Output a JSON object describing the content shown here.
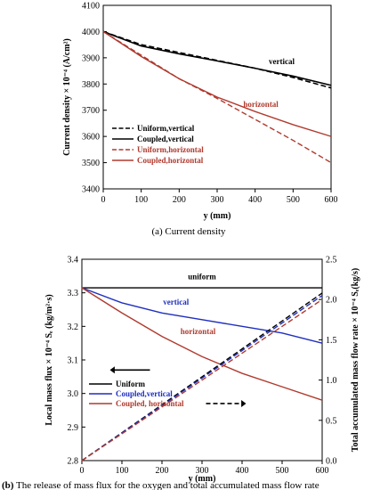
{
  "colors": {
    "black": "#000000",
    "red": "#b03a2e",
    "blue": "#1f2fbf"
  },
  "chart_data": [
    {
      "type": "line",
      "caption_prefix": "(a)",
      "caption_text": " Current density",
      "xlabel": "y (mm)",
      "ylabel": "Current density × 10⁻⁴ (A/cm²)",
      "xlim": [
        0,
        600
      ],
      "ylim": [
        3400,
        4100
      ],
      "xticks": [
        "0",
        "100",
        "200",
        "300",
        "400",
        "500",
        "600"
      ],
      "yticks": [
        "3400",
        "3500",
        "3600",
        "3700",
        "3800",
        "3900",
        "4000",
        "4100"
      ],
      "annotations": [
        {
          "text": "vertical",
          "x": 470,
          "y": 3876,
          "color": "black"
        },
        {
          "text": "horizontal",
          "x": 415,
          "y": 3712,
          "color": "red"
        }
      ],
      "legend": [
        {
          "text": "Uniform,vertical",
          "color": "black",
          "dash": true
        },
        {
          "text": "Coupled,vertical",
          "color": "black",
          "dash": false
        },
        {
          "text": "Uniform,horizontal",
          "color": "red",
          "dash": true
        },
        {
          "text": "Coupled,horizontal",
          "color": "red",
          "dash": false
        }
      ],
      "series": [
        {
          "name": "Uniform,vertical",
          "color": "black",
          "dash": true,
          "x": [
            0,
            100,
            200,
            300,
            400,
            500,
            600
          ],
          "values": [
            4000,
            3950,
            3920,
            3890,
            3860,
            3825,
            3785
          ]
        },
        {
          "name": "Coupled,vertical",
          "color": "black",
          "dash": false,
          "x": [
            0,
            100,
            200,
            300,
            400,
            500,
            600
          ],
          "values": [
            4000,
            3945,
            3915,
            3888,
            3860,
            3830,
            3795
          ]
        },
        {
          "name": "Uniform,horizontal",
          "color": "red",
          "dash": true,
          "x": [
            0,
            100,
            200,
            300,
            400,
            500,
            600
          ],
          "values": [
            4000,
            3910,
            3820,
            3745,
            3665,
            3585,
            3500
          ]
        },
        {
          "name": "Coupled,horizontal",
          "color": "red",
          "dash": false,
          "x": [
            0,
            100,
            200,
            300,
            400,
            500,
            600
          ],
          "values": [
            4000,
            3905,
            3820,
            3750,
            3695,
            3645,
            3600
          ]
        }
      ]
    },
    {
      "type": "line",
      "caption_prefix": "(b)",
      "caption_text": " The release of mass flux for the oxygen and total accumulated mass flow rate",
      "xlabel": "y (mm)",
      "ylabel": "Local mass flux × 10⁻⁴ Sₑ (kg/m²·s)",
      "ylabel_right": "Total accumulated mass flow rate × 10⁻⁴ Sₑ(kg/s)",
      "xlim": [
        0,
        600
      ],
      "ylim": [
        2.8,
        3.4
      ],
      "ylim_right": [
        0,
        2.5
      ],
      "xticks": [
        "0",
        "100",
        "200",
        "300",
        "400",
        "500",
        "600"
      ],
      "yticks": [
        "2.8",
        "2.9",
        "3.0",
        "3.1",
        "3.2",
        "3.3",
        "3.4"
      ],
      "yticks_right": [
        "0.0",
        "0.5",
        "1.0",
        "1.5",
        "2.0",
        "2.5"
      ],
      "annotations": [
        {
          "text": "uniform",
          "x": 300,
          "y": 3.34,
          "color": "black"
        },
        {
          "text": "vertical",
          "x": 235,
          "y": 3.265,
          "color": "blue"
        },
        {
          "text": "horizontal",
          "x": 290,
          "y": 3.177,
          "color": "red"
        }
      ],
      "legend": [
        {
          "text": "Uniform",
          "color": "black",
          "dash": false
        },
        {
          "text": "Coupled,vertical",
          "color": "blue",
          "dash": false
        },
        {
          "text": "Coupled, horizontal",
          "color": "red",
          "dash": false
        }
      ],
      "series": [
        {
          "name": "Uniform",
          "axis": "left",
          "color": "black",
          "dash": false,
          "x": [
            0,
            600
          ],
          "values": [
            3.315,
            3.315
          ]
        },
        {
          "name": "Coupled,vertical",
          "axis": "left",
          "color": "blue",
          "dash": false,
          "x": [
            0,
            100,
            200,
            300,
            400,
            500,
            600
          ],
          "values": [
            3.315,
            3.27,
            3.24,
            3.22,
            3.2,
            3.18,
            3.15
          ]
        },
        {
          "name": "Coupled, horizontal",
          "axis": "left",
          "color": "red",
          "dash": false,
          "x": [
            0,
            100,
            200,
            300,
            400,
            500,
            600
          ],
          "values": [
            3.315,
            3.24,
            3.17,
            3.11,
            3.06,
            3.02,
            2.98
          ]
        },
        {
          "axis": "right",
          "color": "black",
          "dash": true,
          "x": [
            0,
            600
          ],
          "values": [
            0,
            2.08
          ]
        },
        {
          "axis": "right",
          "color": "blue",
          "dash": true,
          "x": [
            0,
            600
          ],
          "values": [
            0,
            2.05
          ]
        },
        {
          "axis": "right",
          "color": "red",
          "dash": true,
          "x": [
            0,
            600
          ],
          "values": [
            0,
            2.0
          ]
        }
      ]
    }
  ]
}
